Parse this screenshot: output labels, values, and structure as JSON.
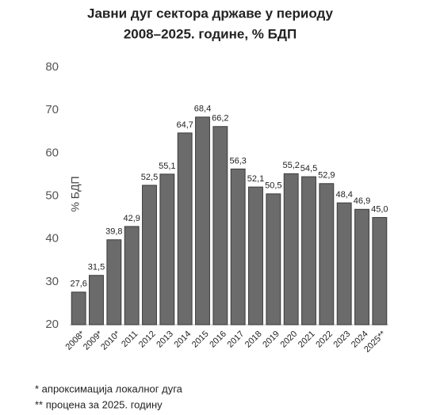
{
  "chart_data": {
    "type": "bar",
    "title": [
      "Јавни дуг сектора државе у периоду",
      "2008–2025. године, % БДП"
    ],
    "y_label": "% БДП",
    "categories": [
      "2008*",
      "2009*",
      "2010*",
      "2011",
      "2012",
      "2013",
      "2014",
      "2015",
      "2016",
      "2017",
      "2018",
      "2019",
      "2020",
      "2021",
      "2022",
      "2023",
      "2024",
      "2025**"
    ],
    "values": [
      27.6,
      31.5,
      39.8,
      42.9,
      52.5,
      55.1,
      64.7,
      68.4,
      66.2,
      56.3,
      52.1,
      50.5,
      55.2,
      54.5,
      52.9,
      48.4,
      46.9,
      45.0
    ],
    "value_labels": [
      "27,6",
      "31,5",
      "39,8",
      "42,9",
      "52,5",
      "55,1",
      "64,7",
      "68,4",
      "66,2",
      "56,3",
      "52,1",
      "50,5",
      "55,2",
      "54,5",
      "52,9",
      "48,4",
      "46,9",
      "45,0"
    ],
    "color": "#6b6b6b",
    "ylim": [
      20,
      80
    ],
    "yticks": [
      20,
      30,
      40,
      50,
      60,
      70,
      80
    ],
    "notes": [
      "* апроксимација локалног дуга",
      "** процена за 2025. годину"
    ]
  }
}
